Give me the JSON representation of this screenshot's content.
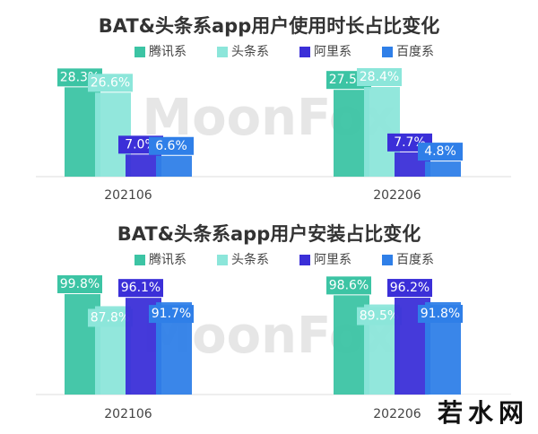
{
  "chart_data": [
    {
      "type": "bar",
      "title": "BAT&头条系app用户使用时长占比变化",
      "categories": [
        "202106",
        "202206"
      ],
      "series": [
        {
          "name": "腾讯系",
          "color": "#3cc4a4",
          "values": [
            28.3,
            27.5
          ],
          "value_labels": [
            "28.3%",
            "27.5%"
          ]
        },
        {
          "name": "头条系",
          "color": "#8ce6da",
          "values": [
            26.6,
            28.4
          ],
          "value_labels": [
            "26.6%",
            "28.4%"
          ]
        },
        {
          "name": "阿里系",
          "color": "#3b2fd8",
          "values": [
            7.0,
            7.7
          ],
          "value_labels": [
            "7.0%",
            "7.7%"
          ]
        },
        {
          "name": "百度系",
          "color": "#2f7fe8",
          "values": [
            6.6,
            4.8
          ],
          "value_labels": [
            "6.6%",
            "4.8%"
          ]
        }
      ]
    },
    {
      "type": "bar",
      "title": "BAT&头条系app用户安装占比变化",
      "categories": [
        "202106",
        "202206"
      ],
      "series": [
        {
          "name": "腾讯系",
          "color": "#3cc4a4",
          "values": [
            99.8,
            98.6
          ],
          "value_labels": [
            "99.8%",
            "98.6%"
          ]
        },
        {
          "name": "头条系",
          "color": "#8ce6da",
          "values": [
            87.8,
            89.5
          ],
          "value_labels": [
            "87.8%",
            "89.5%"
          ]
        },
        {
          "name": "阿里系",
          "color": "#3b2fd8",
          "values": [
            96.1,
            96.2
          ],
          "value_labels": [
            "96.1%",
            "96.2%"
          ]
        },
        {
          "name": "百度系",
          "color": "#2f7fe8",
          "values": [
            91.7,
            91.8
          ],
          "value_labels": [
            "91.7%",
            "91.8%"
          ]
        }
      ]
    }
  ],
  "watermarks": [
    "MoonFox",
    "若水网"
  ]
}
